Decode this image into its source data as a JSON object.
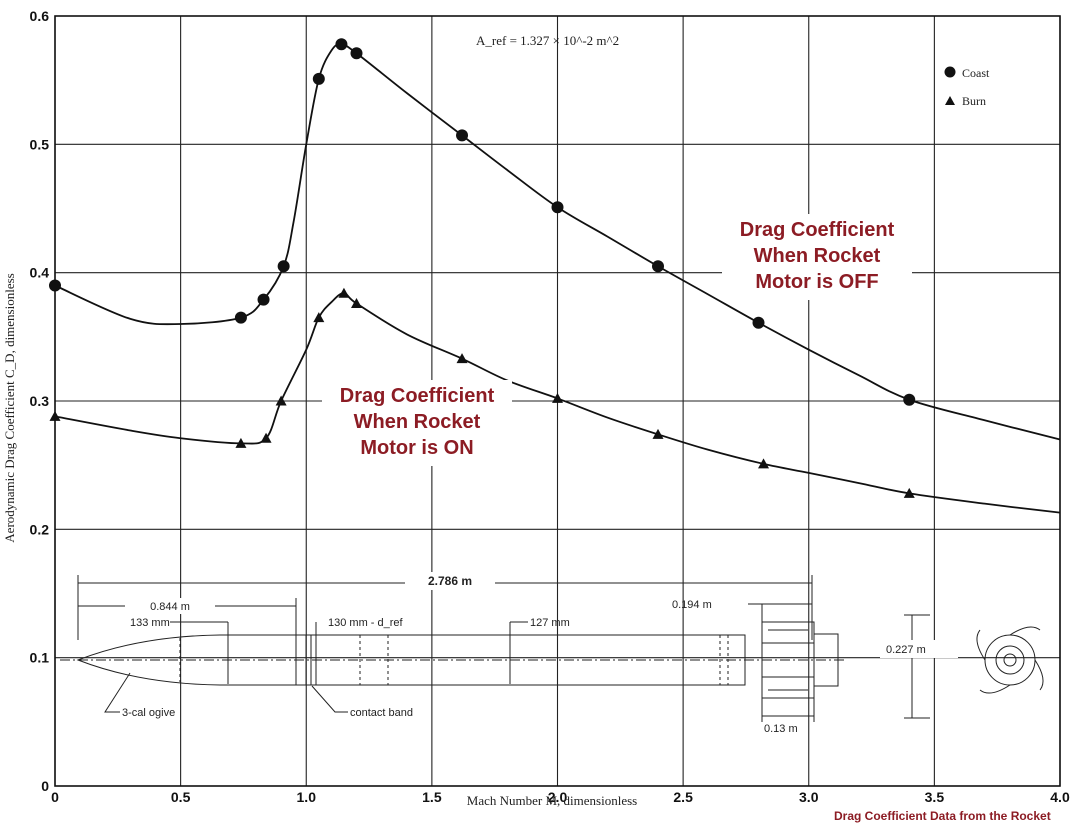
{
  "chart_data": {
    "type": "line",
    "xlabel": "Mach Number M, dimensionless",
    "ylabel": "Aerodynamic Drag Coefficient C_D, dimensionless",
    "xlim": [
      0,
      4.0
    ],
    "ylim": [
      0,
      0.6
    ],
    "x_ticks": [
      "0",
      "0.5",
      "1.0",
      "1.5",
      "2.0",
      "2.5",
      "3.0",
      "3.5",
      "4.0"
    ],
    "y_ticks": [
      "0",
      "0.1",
      "0.2",
      "0.3",
      "0.4",
      "0.5",
      "0.6"
    ],
    "grid": "on",
    "legend_position": "top-right",
    "reference_area_label": "A_ref = 1.327 × 10^-2 m^2",
    "series": [
      {
        "name": "Coast",
        "marker": "circle",
        "curve": [
          [
            0,
            0.39
          ],
          [
            0.3,
            0.364
          ],
          [
            0.5,
            0.36
          ],
          [
            0.74,
            0.365
          ],
          [
            0.83,
            0.379
          ],
          [
            0.91,
            0.405
          ],
          [
            0.95,
            0.44
          ],
          [
            1.0,
            0.5
          ],
          [
            1.05,
            0.551
          ],
          [
            1.1,
            0.573
          ],
          [
            1.14,
            0.578
          ],
          [
            1.2,
            0.571
          ],
          [
            1.4,
            0.54
          ],
          [
            1.62,
            0.507
          ],
          [
            1.8,
            0.48
          ],
          [
            2.0,
            0.451
          ],
          [
            2.2,
            0.428
          ],
          [
            2.4,
            0.405
          ],
          [
            2.6,
            0.383
          ],
          [
            2.8,
            0.361
          ],
          [
            3.0,
            0.34
          ],
          [
            3.2,
            0.32
          ],
          [
            3.4,
            0.301
          ],
          [
            3.7,
            0.285
          ],
          [
            4.0,
            0.27
          ]
        ],
        "points": [
          [
            0,
            0.39
          ],
          [
            0.74,
            0.365
          ],
          [
            0.83,
            0.379
          ],
          [
            0.91,
            0.405
          ],
          [
            1.05,
            0.551
          ],
          [
            1.14,
            0.578
          ],
          [
            1.2,
            0.571
          ],
          [
            1.62,
            0.507
          ],
          [
            2.0,
            0.451
          ],
          [
            2.4,
            0.405
          ],
          [
            2.8,
            0.361
          ],
          [
            3.4,
            0.301
          ]
        ]
      },
      {
        "name": "Burn",
        "marker": "triangle",
        "curve": [
          [
            0,
            0.288
          ],
          [
            0.3,
            0.277
          ],
          [
            0.5,
            0.271
          ],
          [
            0.74,
            0.267
          ],
          [
            0.84,
            0.271
          ],
          [
            0.9,
            0.3
          ],
          [
            1.0,
            0.34
          ],
          [
            1.05,
            0.365
          ],
          [
            1.1,
            0.377
          ],
          [
            1.15,
            0.384
          ],
          [
            1.2,
            0.376
          ],
          [
            1.4,
            0.352
          ],
          [
            1.62,
            0.333
          ],
          [
            1.8,
            0.316
          ],
          [
            2.0,
            0.302
          ],
          [
            2.2,
            0.287
          ],
          [
            2.4,
            0.274
          ],
          [
            2.6,
            0.262
          ],
          [
            2.82,
            0.251
          ],
          [
            3.0,
            0.244
          ],
          [
            3.2,
            0.236
          ],
          [
            3.4,
            0.228
          ],
          [
            3.7,
            0.22
          ],
          [
            4.0,
            0.213
          ]
        ],
        "points": [
          [
            0,
            0.288
          ],
          [
            0.74,
            0.267
          ],
          [
            0.84,
            0.271
          ],
          [
            0.9,
            0.3
          ],
          [
            1.05,
            0.365
          ],
          [
            1.15,
            0.384
          ],
          [
            1.2,
            0.376
          ],
          [
            1.62,
            0.333
          ],
          [
            2.0,
            0.302
          ],
          [
            2.4,
            0.274
          ],
          [
            2.82,
            0.251
          ],
          [
            3.4,
            0.228
          ]
        ]
      }
    ],
    "annotations": {
      "off": [
        "Drag Coefficient",
        "When Rocket",
        "Motor is OFF"
      ],
      "on": [
        "Drag Coefficient",
        "When Rocket",
        "Motor is ON"
      ]
    },
    "rocket_dimensions": {
      "total_length": "2.786 m",
      "nose_length": "0.844 m",
      "diam_133": "133 mm",
      "diam_130": "130 mm - d_ref",
      "diam_127": "127 mm",
      "fin_len": "0.194 m",
      "fin_span": "0.227 m",
      "fin_root": "0.13 m",
      "ogive": "3-cal ogive",
      "band": "contact band"
    },
    "caption": "Drag Coefficient Data from the Rocket"
  },
  "colors": {
    "annotation": "#8c1c24",
    "ink": "#111111",
    "grid": "#222222"
  }
}
